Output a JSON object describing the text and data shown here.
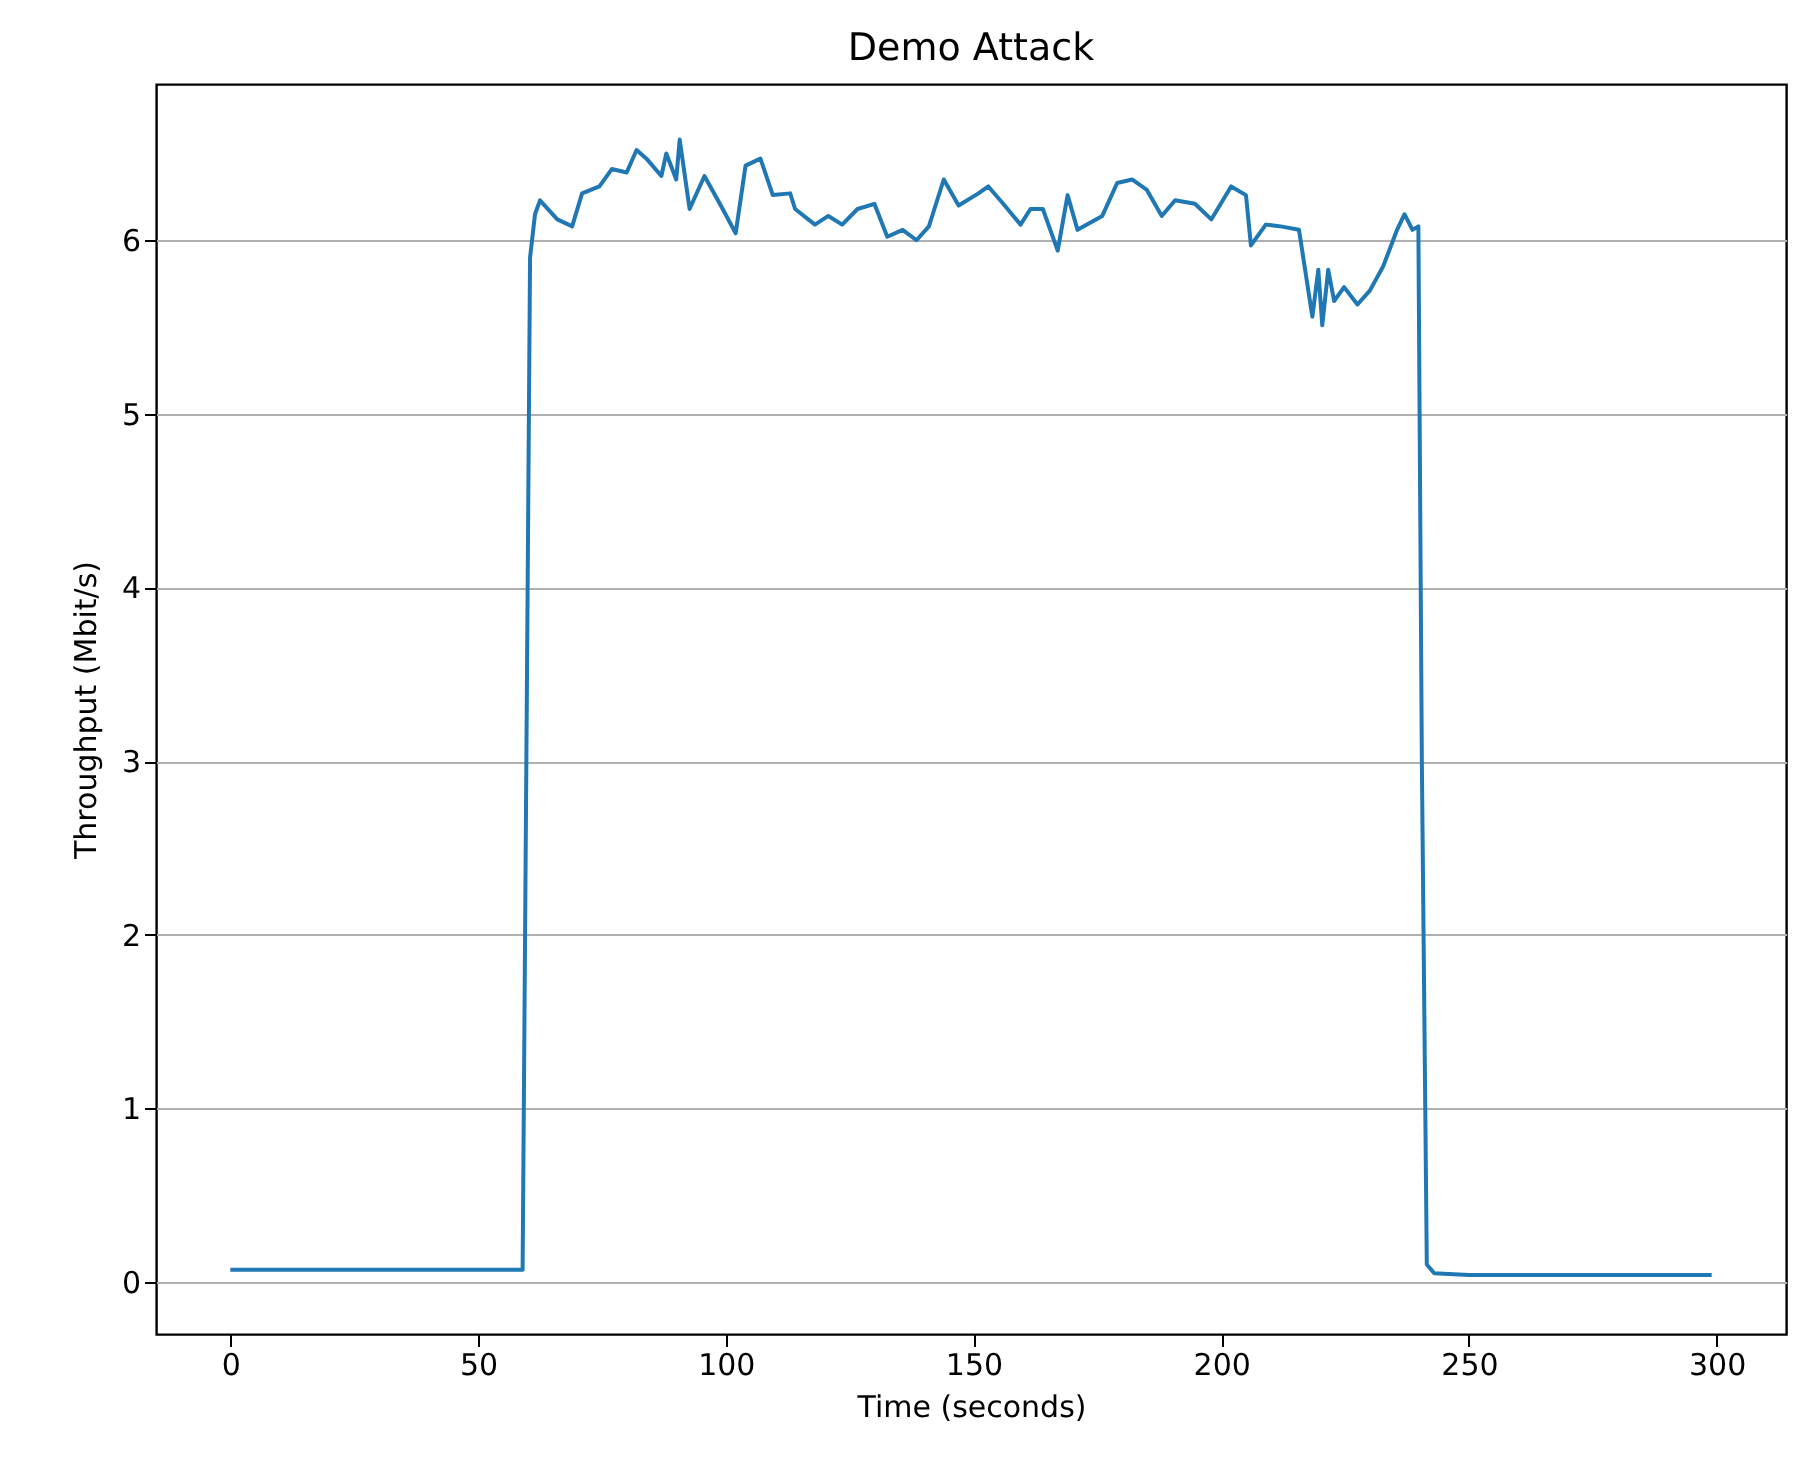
{
  "chart_data": {
    "type": "line",
    "title": "Demo Attack",
    "xlabel": "Time (seconds)",
    "ylabel": "Throughput (Mbit/s)",
    "series": [
      {
        "color": "#1f77b4",
        "x": [
          0,
          10,
          20,
          30,
          40,
          50,
          59,
          60.5,
          61.5,
          62.5,
          66,
          69,
          71,
          74.5,
          77,
          80,
          82,
          84,
          87,
          88,
          90,
          90.7,
          92.7,
          95.7,
          99,
          102,
          104,
          107,
          109.5,
          113,
          114,
          118,
          120.7,
          123.5,
          126.6,
          130,
          132.6,
          135.7,
          138.5,
          141,
          144,
          147,
          151,
          153,
          156,
          159.5,
          161.5,
          164,
          167,
          169,
          171,
          176,
          179,
          182,
          185,
          188,
          190.7,
          194.7,
          198,
          202,
          205,
          206,
          209,
          212,
          215.7,
          218.4,
          219.6,
          220.4,
          221.6,
          222.8,
          224.8,
          227.5,
          230,
          232.7,
          235.5,
          237,
          238.6,
          239.8,
          240.5,
          241.5,
          243,
          250,
          260,
          270,
          280,
          290,
          299
        ],
        "values": [
          0.07,
          0.07,
          0.07,
          0.07,
          0.07,
          0.07,
          0.07,
          5.9,
          6.15,
          6.23,
          6.12,
          6.08,
          6.27,
          6.31,
          6.41,
          6.39,
          6.52,
          6.47,
          6.37,
          6.5,
          6.35,
          6.58,
          6.18,
          6.37,
          6.2,
          6.04,
          6.43,
          6.47,
          6.26,
          6.27,
          6.18,
          6.09,
          6.14,
          6.09,
          6.18,
          6.21,
          6.02,
          6.06,
          6.0,
          6.08,
          6.35,
          6.2,
          6.27,
          6.31,
          6.21,
          6.09,
          6.18,
          6.18,
          5.94,
          6.26,
          6.06,
          6.14,
          6.33,
          6.35,
          6.29,
          6.14,
          6.23,
          6.21,
          6.12,
          6.31,
          6.26,
          5.97,
          6.09,
          6.08,
          6.06,
          5.56,
          5.83,
          5.51,
          5.83,
          5.65,
          5.73,
          5.63,
          5.71,
          5.85,
          6.06,
          6.15,
          6.06,
          6.08,
          3.0,
          0.1,
          0.05,
          0.04,
          0.04,
          0.04,
          0.04,
          0.04,
          0.04
        ]
      }
    ],
    "xlim": [
      -15,
      314
    ],
    "xticks": [
      0,
      50,
      100,
      150,
      200,
      250,
      300
    ],
    "ylim": [
      -0.3,
      6.9
    ],
    "yticks": [
      0,
      1,
      2,
      3,
      4,
      5,
      6
    ],
    "grid": "y"
  }
}
